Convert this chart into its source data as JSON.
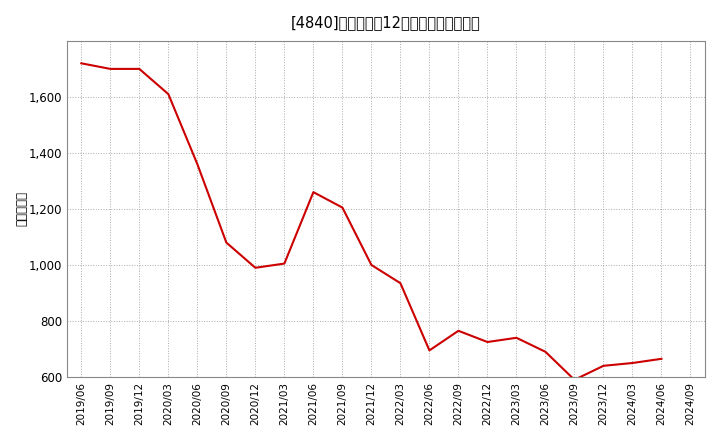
{
  "title": "[4840]　売上高の12か月移動合計の推移",
  "ylabel": "（百万円）",
  "line_color": "#cc0000",
  "background_color": "#ffffff",
  "plot_bg_color": "#ffffff",
  "grid_color": "#aaaaaa",
  "dates": [
    "2019/06",
    "2019/09",
    "2019/12",
    "2020/03",
    "2020/06",
    "2020/09",
    "2020/12",
    "2021/03",
    "2021/06",
    "2021/09",
    "2021/12",
    "2022/03",
    "2022/06",
    "2022/09",
    "2022/12",
    "2023/03",
    "2023/06",
    "2023/09",
    "2023/12",
    "2024/03",
    "2024/06"
  ],
  "values": [
    1720,
    1700,
    1700,
    1610,
    1360,
    1080,
    990,
    1005,
    1260,
    1205,
    1000,
    935,
    695,
    765,
    725,
    740,
    690,
    590,
    640,
    650,
    665
  ],
  "ylim": [
    600,
    1800
  ],
  "yticks": [
    600,
    800,
    1000,
    1200,
    1400,
    1600
  ],
  "xticks": [
    "2019/06",
    "2019/09",
    "2019/12",
    "2020/03",
    "2020/06",
    "2020/09",
    "2020/12",
    "2021/03",
    "2021/06",
    "2021/09",
    "2021/12",
    "2022/03",
    "2022/06",
    "2022/09",
    "2022/12",
    "2023/03",
    "2023/06",
    "2023/09",
    "2023/12",
    "2024/03",
    "2024/06",
    "2024/09"
  ]
}
